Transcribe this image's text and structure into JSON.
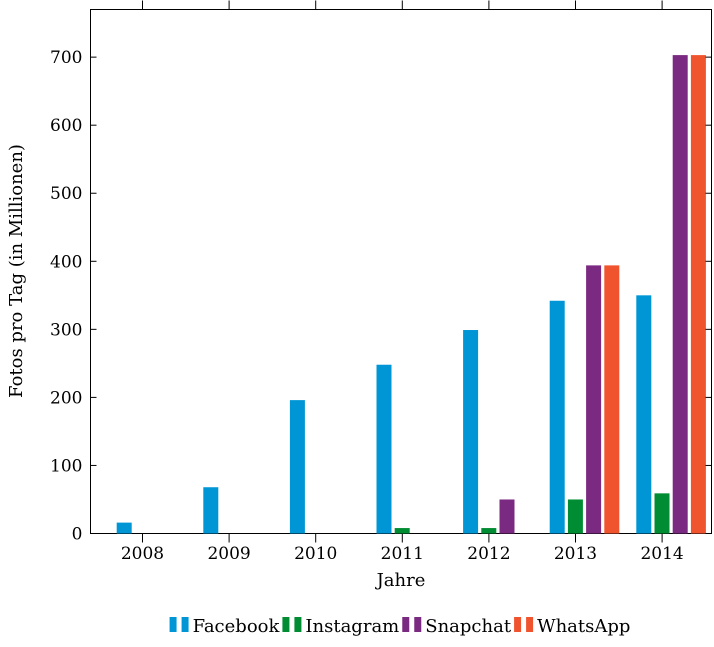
{
  "chart_data": {
    "type": "bar",
    "title": "",
    "xlabel": "Jahre",
    "ylabel": "Fotos pro Tag (in Millionen)",
    "categories": [
      "2008",
      "2009",
      "2010",
      "2011",
      "2012",
      "2013",
      "2014"
    ],
    "ylim": [
      0,
      770
    ],
    "yticks": [
      0,
      100,
      200,
      300,
      400,
      500,
      600,
      700
    ],
    "grid": false,
    "legend_position": "bottom",
    "series": [
      {
        "name": "Facebook",
        "color": "#0096d6",
        "values": [
          16,
          68,
          196,
          248,
          299,
          342,
          350
        ]
      },
      {
        "name": "Instagram",
        "color": "#008c32",
        "values": [
          0,
          0,
          0,
          8,
          8,
          50,
          59
        ]
      },
      {
        "name": "Snapchat",
        "color": "#7b2a81",
        "values": [
          0,
          0,
          0,
          0,
          50,
          394,
          703
        ]
      },
      {
        "name": "WhatsApp",
        "color": "#f0542f",
        "values": [
          0,
          0,
          0,
          0,
          0,
          394,
          703
        ]
      }
    ]
  }
}
